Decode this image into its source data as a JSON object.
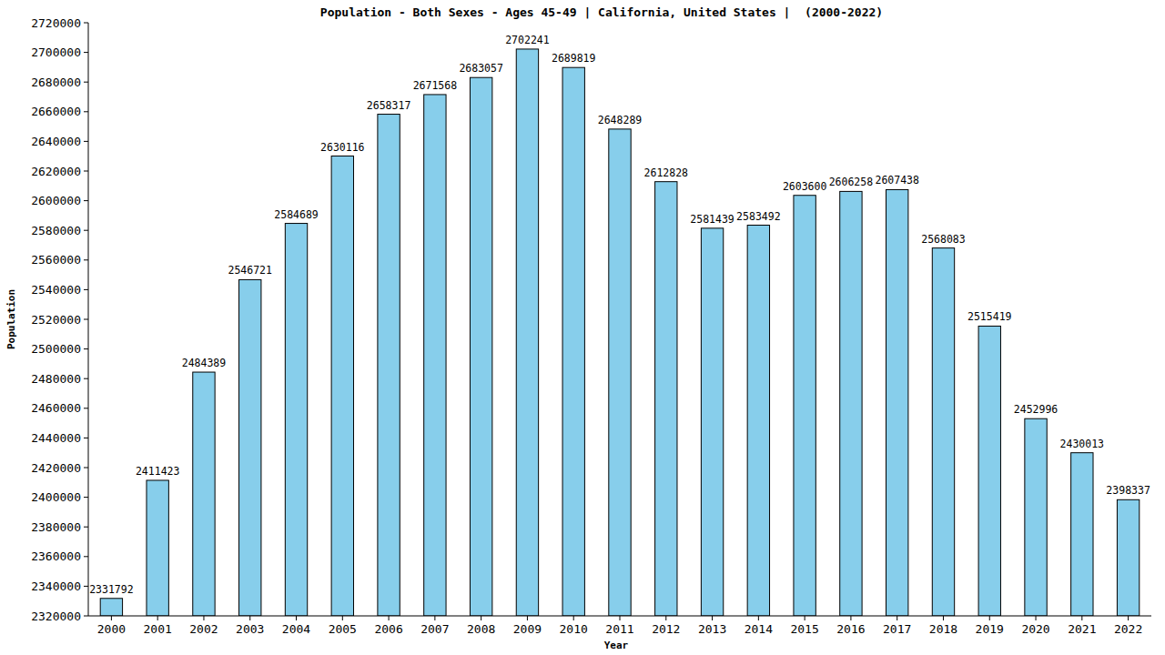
{
  "chart_data": {
    "type": "bar",
    "title": "Population - Both Sexes - Ages 45-49 | California, United States |  (2000-2022)",
    "x_label": "Year",
    "y_label": "Population",
    "categories": [
      "2000",
      "2001",
      "2002",
      "2003",
      "2004",
      "2005",
      "2006",
      "2007",
      "2008",
      "2009",
      "2010",
      "2011",
      "2012",
      "2013",
      "2014",
      "2015",
      "2016",
      "2017",
      "2018",
      "2019",
      "2020",
      "2021",
      "2022"
    ],
    "values": [
      2331792,
      2411423,
      2484389,
      2546721,
      2584689,
      2630116,
      2658317,
      2671568,
      2683057,
      2702241,
      2689819,
      2648289,
      2612828,
      2581439,
      2583492,
      2603600,
      2606258,
      2607438,
      2568083,
      2515419,
      2452996,
      2430013,
      2398337
    ],
    "color": "#87ceeb",
    "ylim": [
      2320000,
      2720000
    ],
    "yticks": [
      2320000,
      2340000,
      2360000,
      2380000,
      2400000,
      2420000,
      2440000,
      2460000,
      2480000,
      2500000,
      2520000,
      2540000,
      2560000,
      2580000,
      2600000,
      2620000,
      2640000,
      2660000,
      2680000,
      2700000,
      2720000
    ],
    "grid": false,
    "data_labels": true
  }
}
